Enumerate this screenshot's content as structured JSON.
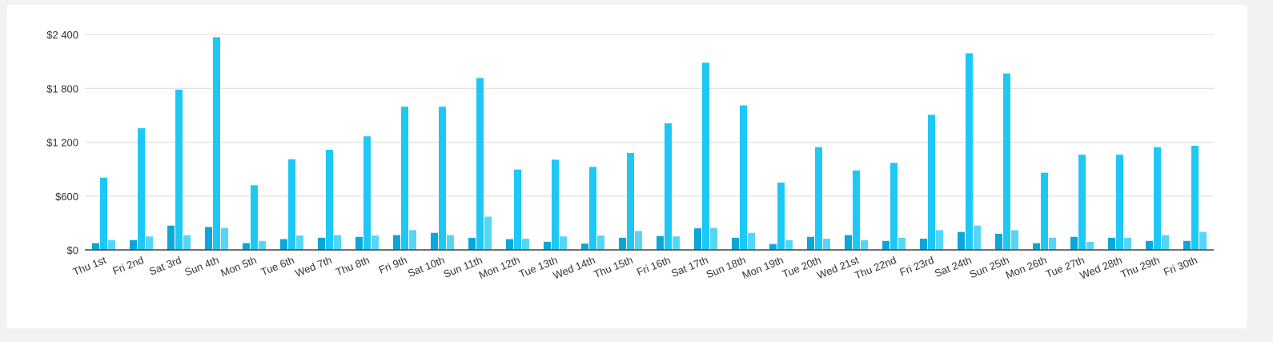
{
  "chart_data": {
    "type": "bar",
    "title": "",
    "xlabel": "",
    "ylabel": "",
    "ylim": [
      0,
      2400
    ],
    "yticks": [
      0,
      600,
      1200,
      1800,
      2400
    ],
    "ytick_labels": [
      "$0",
      "$600",
      "$1 200",
      "$1 800",
      "$2 400"
    ],
    "grid": true,
    "legend": "none",
    "categories": [
      "Thu 1st",
      "Fri 2nd",
      "Sat 3rd",
      "Sun 4th",
      "Mon 5th",
      "Tue 6th",
      "Wed 7th",
      "Thu 8th",
      "Fri 9th",
      "Sat 10th",
      "Sun 11th",
      "Mon 12th",
      "Tue 13th",
      "Wed 14th",
      "Thu 15th",
      "Fri 16th",
      "Sat 17th",
      "Sun 18th",
      "Mon 19th",
      "Tue 20th",
      "Wed 21st",
      "Thu 22nd",
      "Fri 23rd",
      "Sat 24th",
      "Sun 25th",
      "Mon 26th",
      "Tue 27th",
      "Wed 28th",
      "Thu 29th",
      "Fri 30th"
    ],
    "series": [
      {
        "color": "#0aa7d8",
        "values": [
          75,
          110,
          270,
          255,
          75,
          120,
          135,
          145,
          165,
          190,
          135,
          120,
          90,
          70,
          135,
          155,
          240,
          135,
          65,
          145,
          165,
          100,
          125,
          200,
          180,
          75,
          145,
          135,
          100,
          100
        ]
      },
      {
        "color": "#1ec8f5",
        "values": [
          805,
          1355,
          1785,
          2370,
          720,
          1010,
          1115,
          1265,
          1595,
          1595,
          1915,
          895,
          1005,
          925,
          1080,
          1410,
          2085,
          1610,
          750,
          1145,
          885,
          970,
          1505,
          2190,
          1965,
          860,
          1060,
          1060,
          1145,
          1160
        ]
      },
      {
        "color": "#56d6f7",
        "values": [
          110,
          150,
          165,
          245,
          100,
          160,
          165,
          160,
          220,
          165,
          370,
          125,
          150,
          160,
          210,
          150,
          245,
          190,
          110,
          125,
          110,
          135,
          220,
          270,
          220,
          135,
          90,
          135,
          165,
          200
        ]
      }
    ]
  }
}
